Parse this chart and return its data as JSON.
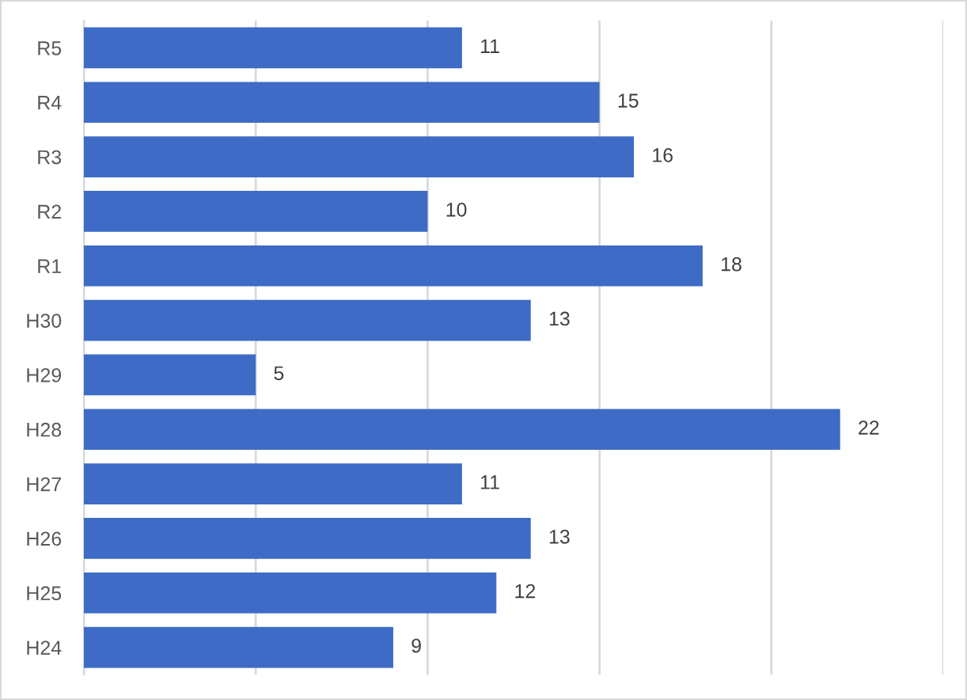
{
  "chart_data": {
    "type": "bar",
    "orientation": "horizontal",
    "categories": [
      "R5",
      "R4",
      "R3",
      "R2",
      "R1",
      "H30",
      "H29",
      "H28",
      "H27",
      "H26",
      "H25",
      "H24"
    ],
    "values": [
      11,
      15,
      16,
      10,
      18,
      13,
      5,
      22,
      11,
      13,
      12,
      9
    ],
    "color": "#3d6bc6",
    "xlim": [
      0,
      25
    ],
    "xticks": [
      {
        "value": 0,
        "label": null
      },
      {
        "value": 5,
        "label": null
      },
      {
        "value": 10,
        "label": null
      },
      {
        "value": 15,
        "label": null
      },
      {
        "value": 20,
        "label": null
      },
      {
        "value": 25,
        "label": null
      }
    ],
    "grid": "x",
    "tick_labels": "y",
    "data_labels": true
  }
}
